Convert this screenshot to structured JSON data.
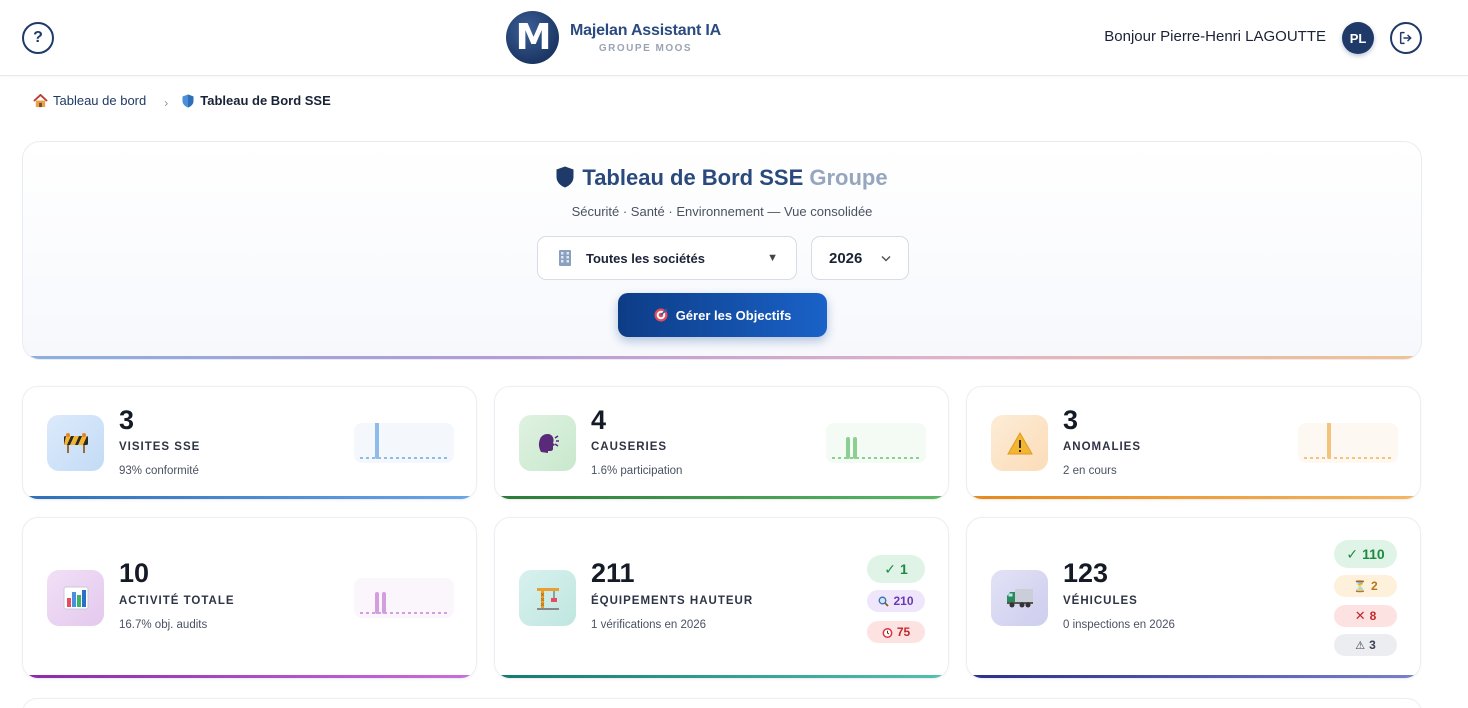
{
  "header": {
    "brand_name": "Majelan Assistant IA",
    "brand_sub": "GROUPE MOOS",
    "greeting": "Bonjour Pierre-Henri LAGOUTTE",
    "avatar_initials": "PL"
  },
  "breadcrumb": {
    "home": "Tableau de bord",
    "current": "Tableau de Bord SSE"
  },
  "hero": {
    "title_main": "Tableau de Bord SSE",
    "title_muted": "Groupe",
    "subtitle": "Sécurité · Santé · Environnement — Vue consolidée",
    "company_select": "Toutes les sociétés",
    "year_select": "2026",
    "objectives_button": "Gérer les Objectifs"
  },
  "cards": {
    "visites": {
      "value": "3",
      "label": "VISITES SSE",
      "sub": "93% conformité",
      "color": "#4a90e2"
    },
    "causeries": {
      "value": "4",
      "label": "CAUSERIES",
      "sub": "1.6% participation",
      "color": "#3b9a4a"
    },
    "anomalies": {
      "value": "3",
      "label": "ANOMALIES",
      "sub": "2 en cours",
      "color": "#f0a23a"
    },
    "activite": {
      "value": "10",
      "label": "ACTIVITÉ TOTALE",
      "sub": "16.7% obj. audits",
      "color": "#a440c0"
    },
    "equipements": {
      "value": "211",
      "label": "ÉQUIPEMENTS HAUTEUR",
      "sub": "1 vérifications en 2026",
      "color": "#1e9a8a",
      "badges": {
        "ok": "1",
        "search": "210",
        "alarm": "75"
      }
    },
    "vehicules": {
      "value": "123",
      "label": "VÉHICULES",
      "sub": "0 inspections en 2026",
      "color": "#4a4fa8",
      "badges": {
        "ok": "110",
        "pending": "2",
        "ko": "8",
        "warn": "3"
      }
    }
  }
}
